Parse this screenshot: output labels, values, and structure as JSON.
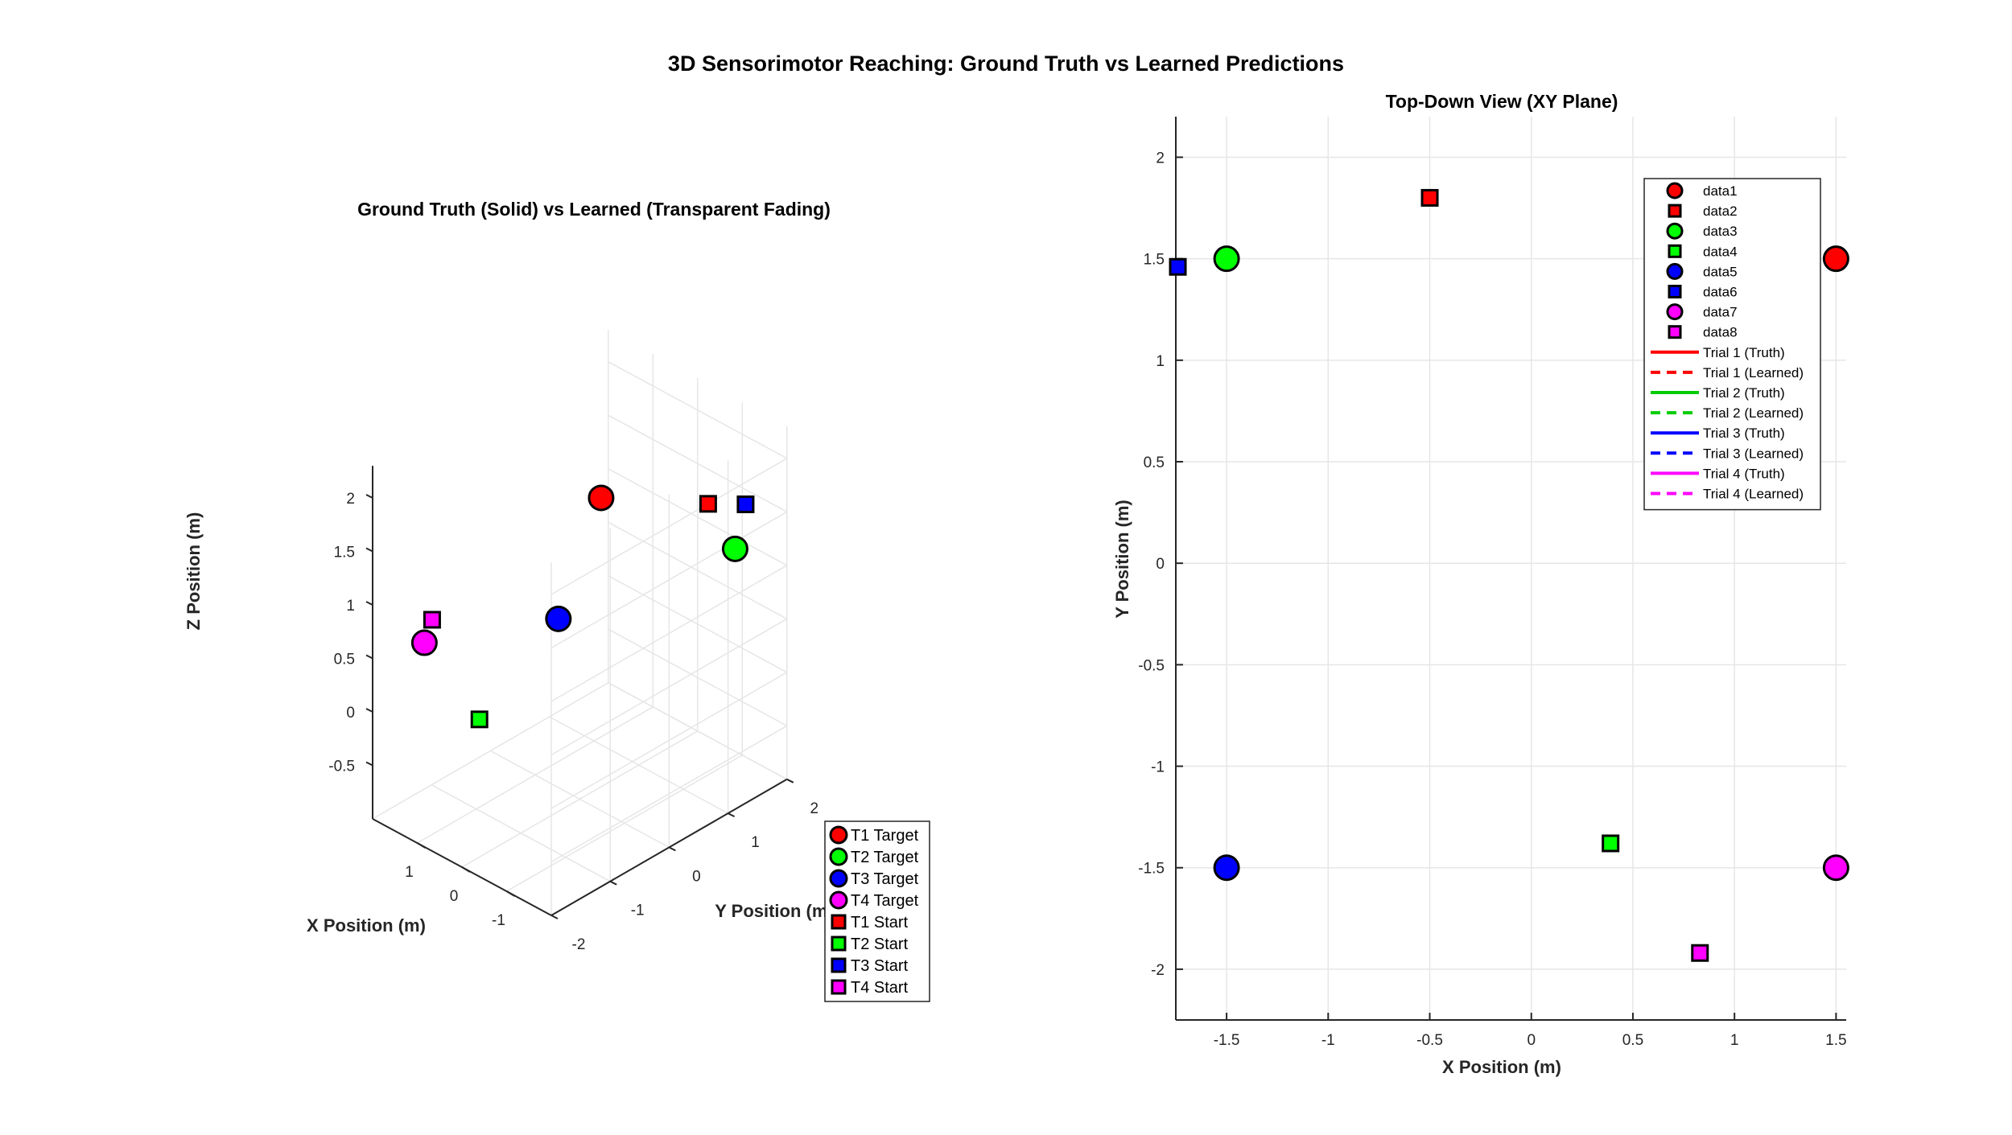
{
  "figure_title": "3D Sensorimotor Reaching: Ground Truth vs Learned Predictions",
  "colors": {
    "trial1": "#ff0000",
    "trial2": "#00ff00",
    "trial3": "#0000ff",
    "trial4": "#ff00ff",
    "grid": "#e6e6e6",
    "axis": "#262626"
  },
  "chart_data": [
    {
      "type": "scatter",
      "projection": "3d",
      "title": "Ground Truth (Solid) vs Learned (Transparent Fading)",
      "xlabel": "X Position (m)",
      "ylabel": "Y Position (m)",
      "zlabel": "Z Position (m)",
      "xticks": [
        "-1",
        "0",
        "1"
      ],
      "yticks": [
        "-2",
        "-1",
        "0",
        "1",
        "2"
      ],
      "zticks": [
        "-0.5",
        "0",
        "0.5",
        "1",
        "1.5",
        "2"
      ],
      "grid": true,
      "legend_position": "bottom-right",
      "series": [
        {
          "name": "T1 Target",
          "marker": "circle",
          "color": "#ff0000",
          "points": [
            {
              "x": 1.5,
              "y": 1.5,
              "z": 1.0
            }
          ]
        },
        {
          "name": "T2 Target",
          "marker": "circle",
          "color": "#00ff00",
          "points": [
            {
              "x": -1.5,
              "y": 1.5,
              "z": 1.2
            }
          ]
        },
        {
          "name": "T3 Target",
          "marker": "circle",
          "color": "#0000ff",
          "points": [
            {
              "x": -1.5,
              "y": -1.5,
              "z": 1.5
            }
          ]
        },
        {
          "name": "T4 Target",
          "marker": "circle",
          "color": "#ff00ff",
          "points": [
            {
              "x": 1.5,
              "y": -1.5,
              "z": 0.6
            }
          ]
        },
        {
          "name": "T1 Start",
          "marker": "square",
          "color": "#ff0000",
          "points": [
            {
              "x": -0.5,
              "y": 1.8,
              "z": 1.3
            }
          ]
        },
        {
          "name": "T2 Start",
          "marker": "square",
          "color": "#00ff00",
          "points": [
            {
              "x": 0.4,
              "y": -1.4,
              "z": 0.1
            }
          ]
        },
        {
          "name": "T3 Start",
          "marker": "square",
          "color": "#0000ff",
          "points": [
            {
              "x": -1.8,
              "y": 1.45,
              "z": 1.7
            }
          ]
        },
        {
          "name": "T4 Start",
          "marker": "square",
          "color": "#ff00ff",
          "points": [
            {
              "x": 0.8,
              "y": -1.9,
              "z": 1.1
            }
          ]
        }
      ]
    },
    {
      "type": "scatter",
      "title": "Top-Down View (XY Plane)",
      "xlabel": "X Position (m)",
      "ylabel": "Y Position (m)",
      "xlim": [
        -1.75,
        1.55
      ],
      "ylim": [
        -2.25,
        2.2
      ],
      "xticks": [
        -1.5,
        -1,
        -0.5,
        0,
        0.5,
        1,
        1.5
      ],
      "yticks": [
        -2,
        -1.5,
        -1,
        -0.5,
        0,
        0.5,
        1,
        1.5,
        2
      ],
      "grid": true,
      "legend_position": "top-right",
      "series": [
        {
          "name": "data1",
          "marker": "circle",
          "color": "#ff0000",
          "x": [
            1.5
          ],
          "y": [
            1.5
          ]
        },
        {
          "name": "data2",
          "marker": "square",
          "color": "#ff0000",
          "x": [
            -0.5
          ],
          "y": [
            1.8
          ]
        },
        {
          "name": "data3",
          "marker": "circle",
          "color": "#00ff00",
          "x": [
            -1.5
          ],
          "y": [
            1.5
          ]
        },
        {
          "name": "data4",
          "marker": "square",
          "color": "#00ff00",
          "x": [
            0.39
          ],
          "y": [
            -1.38
          ]
        },
        {
          "name": "data5",
          "marker": "circle",
          "color": "#0000ff",
          "x": [
            -1.5
          ],
          "y": [
            -1.5
          ]
        },
        {
          "name": "data6",
          "marker": "square",
          "color": "#0000ff",
          "x": [
            -1.74
          ],
          "y": [
            1.46
          ]
        },
        {
          "name": "data7",
          "marker": "circle",
          "color": "#ff00ff",
          "x": [
            1.5
          ],
          "y": [
            -1.5
          ]
        },
        {
          "name": "data8",
          "marker": "square",
          "color": "#ff00ff",
          "x": [
            0.83
          ],
          "y": [
            -1.92
          ]
        },
        {
          "name": "Trial 1 (Truth)",
          "marker": "line-solid",
          "color": "#ff0000",
          "x": [],
          "y": []
        },
        {
          "name": "Trial 1 (Learned)",
          "marker": "line-dashed",
          "color": "#ff0000",
          "x": [],
          "y": []
        },
        {
          "name": "Trial 2 (Truth)",
          "marker": "line-solid",
          "color": "#00cc00",
          "x": [],
          "y": []
        },
        {
          "name": "Trial 2 (Learned)",
          "marker": "line-dashed",
          "color": "#00cc00",
          "x": [],
          "y": []
        },
        {
          "name": "Trial 3 (Truth)",
          "marker": "line-solid",
          "color": "#0000ff",
          "x": [],
          "y": []
        },
        {
          "name": "Trial 3 (Learned)",
          "marker": "line-dashed",
          "color": "#0000ff",
          "x": [],
          "y": []
        },
        {
          "name": "Trial 4 (Truth)",
          "marker": "line-solid",
          "color": "#ff00ff",
          "x": [],
          "y": []
        },
        {
          "name": "Trial 4 (Learned)",
          "marker": "line-dashed",
          "color": "#ff00ff",
          "x": [],
          "y": []
        }
      ]
    }
  ]
}
